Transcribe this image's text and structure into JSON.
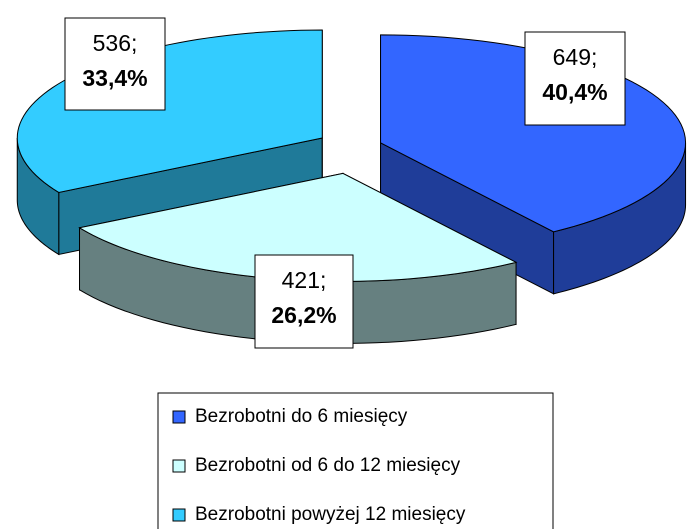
{
  "chart_data": {
    "type": "pie3d",
    "categories": [
      "Bezrobotni do 6 miesięcy",
      "Bezrobotni od 6 do 12 miesięcy",
      "Bezrobotni powyżej 12 miesięcy"
    ],
    "values": [
      649,
      421,
      536
    ],
    "value_labels": [
      "649;",
      "421;",
      "536;"
    ],
    "percentages": [
      {
        "value": 40.4,
        "label": "40,4%"
      },
      {
        "value": 26.2,
        "label": "26,2%"
      },
      {
        "value": 33.4,
        "label": "33,4%"
      }
    ],
    "colors": [
      "#3366ff",
      "#ccffff",
      "#33ccff"
    ],
    "side_colors": [
      "#1f3d99",
      "#668080",
      "#1f7a99"
    ],
    "legend": "bottom"
  }
}
